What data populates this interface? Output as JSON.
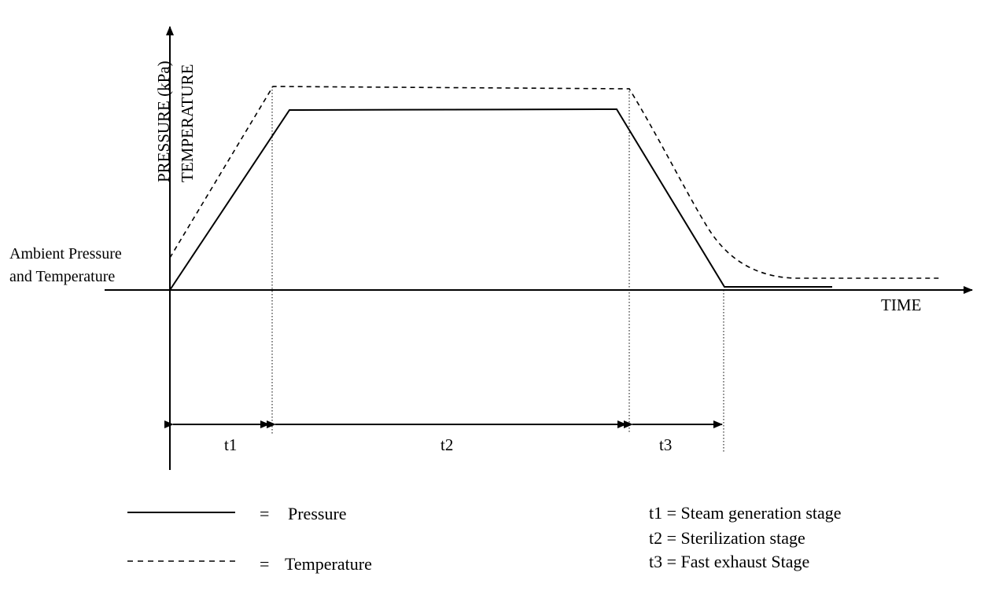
{
  "axes": {
    "y_label_1": "PRESSURE (kPa)",
    "y_label_2": "TEMPERATURE",
    "x_label": "TIME",
    "ambient_line_1": "Ambient Pressure",
    "ambient_line_2": "and Temperature"
  },
  "stages": {
    "t1": "t1",
    "t2": "t2",
    "t3": "t3"
  },
  "legend": {
    "equals": "=",
    "pressure": "Pressure",
    "temperature": "Temperature",
    "t1_desc": "t1 = Steam generation stage",
    "t2_desc": "t2 = Sterilization stage",
    "t3_desc": "t3 = Fast exhaust Stage"
  },
  "style": {
    "ink": "#000000",
    "background": "#ffffff"
  }
}
